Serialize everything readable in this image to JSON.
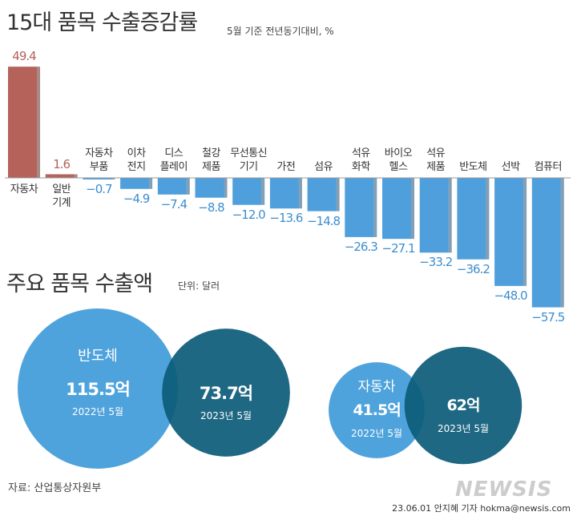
{
  "chart_data": [
    {
      "type": "bar",
      "title": "15대 품목 수출증감률",
      "subtitle": "5월 기준 전년동기대비, %",
      "categories": [
        "자동차",
        "일반\n기계",
        "자동차\n부품",
        "이차\n전지",
        "디스\n플레이",
        "철강\n제품",
        "무선통신\n기기",
        "가전",
        "섬유",
        "석유\n화학",
        "바이오\n헬스",
        "석유\n제품",
        "반도체",
        "선박",
        "컴퓨터"
      ],
      "values": [
        49.4,
        1.6,
        -0.7,
        -4.9,
        -7.4,
        -8.8,
        -12.0,
        -13.6,
        -14.8,
        -26.3,
        -27.1,
        -33.2,
        -36.2,
        -48.0,
        -57.5
      ],
      "value_labels": [
        "49.4",
        "1.6",
        "−0.7",
        "−4.9",
        "−7.4",
        "−8.8",
        "−12.0",
        "−13.6",
        "−14.8",
        "−26.3",
        "−27.1",
        "−33.2",
        "−36.2",
        "−48.0",
        "−57.5"
      ],
      "colors": {
        "positive": "#b5625a",
        "negative": "#4f9fdc"
      }
    },
    {
      "type": "bubble",
      "title": "주요 품목 수출액",
      "subtitle": "단위: 달러",
      "groups": [
        {
          "name": "반도체",
          "items": [
            {
              "period": "2022년 5월",
              "value": 115.5,
              "value_label": "115.5억"
            },
            {
              "period": "2023년 5월",
              "value": 73.7,
              "value_label": "73.7억"
            }
          ]
        },
        {
          "name": "자동차",
          "items": [
            {
              "period": "2022년 5월",
              "value": 41.5,
              "value_label": "41.5억"
            },
            {
              "period": "2023년 5월",
              "value": 62,
              "value_label": "62억"
            }
          ]
        }
      ],
      "colors": [
        "#4fa3dc",
        "#0c5b78"
      ]
    }
  ],
  "source": "자료: 산업통상자원부",
  "credit": "23.06.01 안지혜 기자 hokma@newsis.com",
  "logo": "NEWSIS"
}
